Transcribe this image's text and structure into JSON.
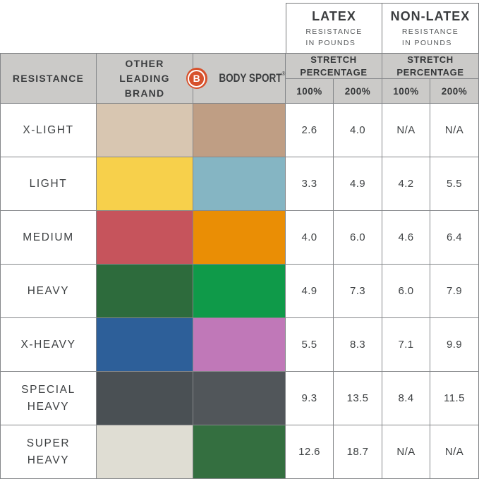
{
  "table": {
    "top_groups": [
      {
        "title": "LATEX",
        "subtitle": "RESISTANCE\nIN POUNDS"
      },
      {
        "title": "NON-LATEX",
        "subtitle": "RESISTANCE\nIN POUNDS"
      }
    ],
    "header": {
      "resistance_label": "RESISTANCE",
      "other_brand_label": "OTHER\nLEADING\nBRAND",
      "brand": {
        "initial": "B",
        "name": "BODY SPORT",
        "registered_mark": "®",
        "circle_color": "#d7512c"
      },
      "stretch_label_latex": "STRETCH\nPERCENTAGE",
      "stretch_label_nonlatex": "STRETCH\nPERCENTAGE",
      "percent_columns": [
        "100%",
        "200%",
        "100%",
        "200%"
      ]
    },
    "rows": [
      {
        "label": "X-LIGHT",
        "other_brand_color": "#d8c6b1",
        "body_sport_color": "#bf9e84",
        "latex_100": "2.6",
        "latex_200": "4.0",
        "non_latex_100": "N/A",
        "non_latex_200": "N/A"
      },
      {
        "label": "LIGHT",
        "other_brand_color": "#f7d04b",
        "body_sport_color": "#85b5c3",
        "latex_100": "3.3",
        "latex_200": "4.9",
        "non_latex_100": "4.2",
        "non_latex_200": "5.5"
      },
      {
        "label": "MEDIUM",
        "other_brand_color": "#c6545c",
        "body_sport_color": "#ea8e05",
        "latex_100": "4.0",
        "latex_200": "6.0",
        "non_latex_100": "4.6",
        "non_latex_200": "6.4"
      },
      {
        "label": "HEAVY",
        "other_brand_color": "#2d6b3c",
        "body_sport_color": "#0f9a49",
        "latex_100": "4.9",
        "latex_200": "7.3",
        "non_latex_100": "6.0",
        "non_latex_200": "7.9"
      },
      {
        "label": "X-HEAVY",
        "other_brand_color": "#2d5f99",
        "body_sport_color": "#c078b8",
        "latex_100": "5.5",
        "latex_200": "8.3",
        "non_latex_100": "7.1",
        "non_latex_200": "9.9"
      },
      {
        "label": "SPECIAL\nHEAVY",
        "other_brand_color": "#4a5054",
        "body_sport_color": "#51565a",
        "latex_100": "9.3",
        "latex_200": "13.5",
        "non_latex_100": "8.4",
        "non_latex_200": "11.5"
      },
      {
        "label": "SUPER\nHEAVY",
        "other_brand_color": "#dfddd3",
        "body_sport_color": "#346f40",
        "latex_100": "12.6",
        "latex_200": "18.7",
        "non_latex_100": "N/A",
        "non_latex_200": "N/A"
      }
    ],
    "colors": {
      "header_background": "#cbcac8",
      "grid_line": "#85878a",
      "text_dark": "#3b3d3f",
      "brand_orange": "#d7512c"
    }
  },
  "chart_data": {
    "type": "table",
    "title": "Resistance band comparison: Body Sport vs Other Leading Brand",
    "column_groups": [
      "Latex Resistance in Pounds",
      "Non-Latex Resistance in Pounds"
    ],
    "columns": [
      "Resistance",
      "Other Leading Brand swatch",
      "Body Sport swatch",
      "Latex Stretch 100%",
      "Latex Stretch 200%",
      "Non-Latex Stretch 100%",
      "Non-Latex Stretch 200%"
    ],
    "rows": [
      [
        "X-Light",
        "#d8c6b1",
        "#bf9e84",
        2.6,
        4.0,
        "N/A",
        "N/A"
      ],
      [
        "Light",
        "#f7d04b",
        "#85b5c3",
        3.3,
        4.9,
        4.2,
        5.5
      ],
      [
        "Medium",
        "#c6545c",
        "#ea8e05",
        4.0,
        6.0,
        4.6,
        6.4
      ],
      [
        "Heavy",
        "#2d6b3c",
        "#0f9a49",
        4.9,
        7.3,
        6.0,
        7.9
      ],
      [
        "X-Heavy",
        "#2d5f99",
        "#c078b8",
        5.5,
        8.3,
        7.1,
        9.9
      ],
      [
        "Special Heavy",
        "#4a5054",
        "#51565a",
        9.3,
        13.5,
        8.4,
        11.5
      ],
      [
        "Super Heavy",
        "#dfddd3",
        "#346f40",
        12.6,
        18.7,
        "N/A",
        "N/A"
      ]
    ]
  }
}
